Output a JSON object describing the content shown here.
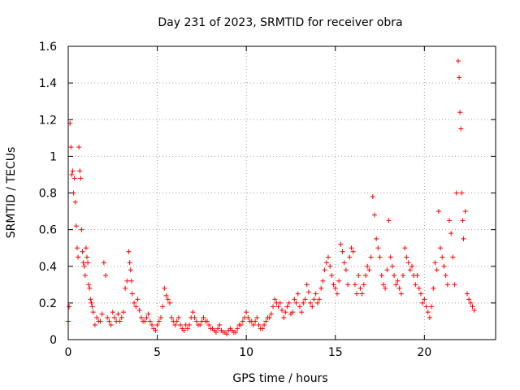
{
  "chart_data": {
    "type": "scatter",
    "title": "Day 231 of 2023, SRMTID for receiver obra",
    "xlabel": "GPS time / hours",
    "ylabel": "SRMTID / TECUs",
    "xlim": [
      0,
      24
    ],
    "ylim": [
      0,
      1.6
    ],
    "xticks": [
      0,
      5,
      10,
      15,
      20
    ],
    "xtick_labels": [
      "0",
      "5",
      "10",
      "15",
      "20"
    ],
    "yticks": [
      0,
      0.2,
      0.4,
      0.6,
      0.8,
      1.0,
      1.2,
      1.4,
      1.6
    ],
    "ytick_labels": [
      "0",
      "0.2",
      "0.4",
      "0.6",
      "0.8",
      "1",
      "1.2",
      "1.4",
      "1.6"
    ],
    "grid": true,
    "marker": "+",
    "color": "#ff0000",
    "series": [
      {
        "name": "SRMTID",
        "x": [
          0.0,
          0.05,
          0.1,
          0.15,
          0.2,
          0.25,
          0.3,
          0.35,
          0.4,
          0.45,
          0.5,
          0.55,
          0.6,
          0.65,
          0.7,
          0.75,
          0.8,
          0.85,
          0.9,
          0.95,
          1.0,
          1.05,
          1.1,
          1.15,
          1.2,
          1.25,
          1.3,
          1.35,
          1.4,
          1.5,
          1.6,
          1.7,
          1.8,
          1.9,
          2.0,
          2.1,
          2.2,
          2.3,
          2.4,
          2.5,
          2.6,
          2.7,
          2.8,
          2.9,
          3.0,
          3.1,
          3.2,
          3.3,
          3.4,
          3.45,
          3.5,
          3.55,
          3.6,
          3.7,
          3.8,
          3.9,
          4.0,
          4.1,
          4.2,
          4.3,
          4.4,
          4.5,
          4.6,
          4.7,
          4.8,
          4.9,
          5.0,
          5.1,
          5.2,
          5.3,
          5.4,
          5.5,
          5.6,
          5.7,
          5.8,
          5.9,
          6.0,
          6.1,
          6.2,
          6.3,
          6.4,
          6.5,
          6.6,
          6.7,
          6.8,
          6.9,
          7.0,
          7.1,
          7.2,
          7.3,
          7.4,
          7.5,
          7.6,
          7.7,
          7.8,
          7.9,
          8.0,
          8.1,
          8.2,
          8.3,
          8.4,
          8.5,
          8.6,
          8.7,
          8.8,
          8.9,
          9.0,
          9.1,
          9.2,
          9.3,
          9.4,
          9.5,
          9.6,
          9.7,
          9.8,
          9.9,
          10.0,
          10.1,
          10.2,
          10.3,
          10.4,
          10.5,
          10.6,
          10.7,
          10.8,
          10.9,
          11.0,
          11.1,
          11.2,
          11.3,
          11.4,
          11.5,
          11.6,
          11.7,
          11.8,
          11.9,
          12.0,
          12.1,
          12.2,
          12.3,
          12.4,
          12.5,
          12.6,
          12.7,
          12.8,
          12.9,
          13.0,
          13.1,
          13.2,
          13.3,
          13.4,
          13.5,
          13.6,
          13.7,
          13.8,
          13.9,
          14.0,
          14.1,
          14.2,
          14.3,
          14.4,
          14.5,
          14.6,
          14.7,
          14.8,
          14.9,
          15.0,
          15.1,
          15.2,
          15.3,
          15.4,
          15.5,
          15.6,
          15.7,
          15.8,
          15.9,
          16.0,
          16.1,
          16.2,
          16.3,
          16.4,
          16.5,
          16.6,
          16.7,
          16.8,
          16.9,
          17.0,
          17.1,
          17.2,
          17.3,
          17.4,
          17.5,
          17.6,
          17.7,
          17.8,
          17.9,
          18.0,
          18.1,
          18.2,
          18.3,
          18.4,
          18.5,
          18.6,
          18.7,
          18.8,
          18.9,
          19.0,
          19.1,
          19.2,
          19.3,
          19.4,
          19.5,
          19.6,
          19.7,
          19.8,
          19.9,
          20.0,
          20.1,
          20.2,
          20.3,
          20.4,
          20.5,
          20.6,
          20.7,
          20.8,
          20.9,
          21.0,
          21.1,
          21.2,
          21.3,
          21.4,
          21.5,
          21.6,
          21.7,
          21.8,
          21.9,
          21.95,
          22.0,
          22.05,
          22.1,
          22.15,
          22.2,
          22.3,
          22.4,
          22.5,
          22.6,
          22.7,
          22.8
        ],
        "y": [
          0.1,
          0.18,
          1.18,
          1.05,
          0.9,
          0.92,
          0.8,
          0.88,
          0.75,
          0.62,
          0.5,
          0.45,
          1.05,
          0.92,
          0.88,
          0.6,
          0.48,
          0.42,
          0.4,
          0.35,
          0.5,
          0.45,
          0.42,
          0.3,
          0.28,
          0.22,
          0.2,
          0.18,
          0.15,
          0.08,
          0.12,
          0.1,
          0.1,
          0.14,
          0.42,
          0.35,
          0.12,
          0.1,
          0.08,
          0.15,
          0.12,
          0.1,
          0.14,
          0.1,
          0.12,
          0.15,
          0.28,
          0.32,
          0.48,
          0.42,
          0.38,
          0.32,
          0.25,
          0.2,
          0.18,
          0.22,
          0.16,
          0.12,
          0.1,
          0.1,
          0.12,
          0.14,
          0.1,
          0.08,
          0.06,
          0.05,
          0.08,
          0.1,
          0.12,
          0.18,
          0.28,
          0.24,
          0.22,
          0.2,
          0.12,
          0.1,
          0.08,
          0.1,
          0.12,
          0.08,
          0.06,
          0.05,
          0.08,
          0.06,
          0.08,
          0.12,
          0.15,
          0.12,
          0.1,
          0.08,
          0.08,
          0.1,
          0.12,
          0.1,
          0.1,
          0.08,
          0.06,
          0.06,
          0.05,
          0.04,
          0.06,
          0.08,
          0.05,
          0.04,
          0.04,
          0.03,
          0.05,
          0.06,
          0.05,
          0.04,
          0.04,
          0.06,
          0.08,
          0.08,
          0.1,
          0.12,
          0.15,
          0.12,
          0.1,
          0.1,
          0.08,
          0.1,
          0.12,
          0.08,
          0.06,
          0.06,
          0.08,
          0.1,
          0.12,
          0.12,
          0.14,
          0.18,
          0.22,
          0.2,
          0.18,
          0.2,
          0.16,
          0.12,
          0.15,
          0.18,
          0.2,
          0.14,
          0.15,
          0.22,
          0.2,
          0.25,
          0.18,
          0.15,
          0.2,
          0.22,
          0.3,
          0.26,
          0.2,
          0.18,
          0.22,
          0.25,
          0.2,
          0.22,
          0.28,
          0.32,
          0.38,
          0.42,
          0.45,
          0.4,
          0.35,
          0.3,
          0.28,
          0.25,
          0.32,
          0.52,
          0.48,
          0.42,
          0.38,
          0.3,
          0.45,
          0.5,
          0.48,
          0.3,
          0.25,
          0.35,
          0.28,
          0.25,
          0.3,
          0.35,
          0.4,
          0.38,
          0.45,
          0.78,
          0.68,
          0.55,
          0.5,
          0.45,
          0.35,
          0.3,
          0.28,
          0.38,
          0.65,
          0.45,
          0.4,
          0.35,
          0.3,
          0.32,
          0.28,
          0.25,
          0.35,
          0.5,
          0.45,
          0.42,
          0.38,
          0.4,
          0.35,
          0.3,
          0.35,
          0.28,
          0.25,
          0.2,
          0.22,
          0.18,
          0.15,
          0.12,
          0.18,
          0.28,
          0.42,
          0.38,
          0.7,
          0.5,
          0.45,
          0.4,
          0.35,
          0.3,
          0.65,
          0.58,
          0.45,
          0.3,
          0.8,
          1.52,
          1.43,
          1.24,
          1.15,
          0.8,
          0.65,
          0.55,
          0.7,
          0.25,
          0.22,
          0.2,
          0.18,
          0.16
        ]
      }
    ]
  }
}
